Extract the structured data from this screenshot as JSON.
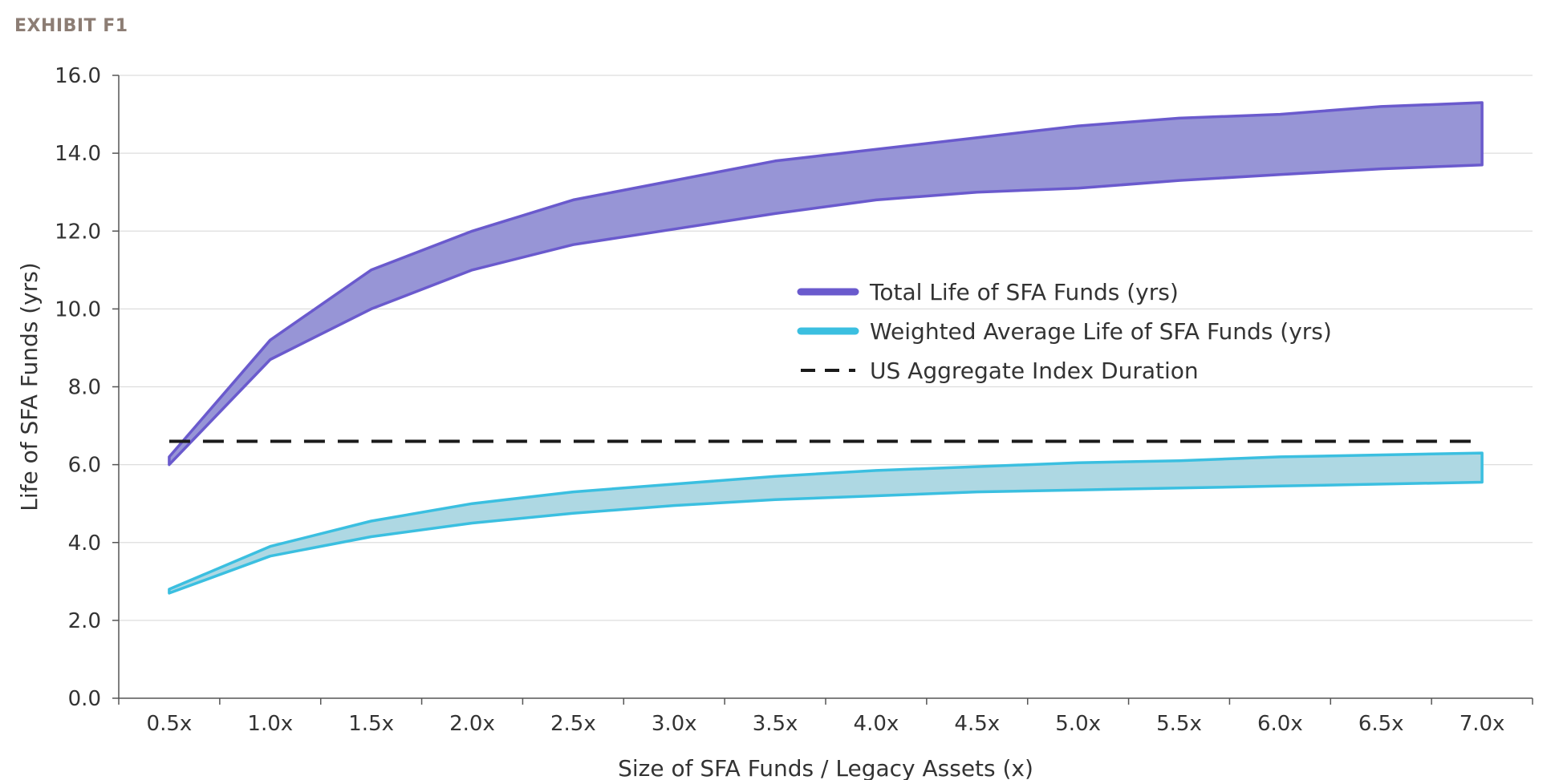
{
  "header": {
    "exhibit_label": "EXHIBIT F1"
  },
  "chart_data": {
    "type": "area",
    "title": "",
    "xlabel": "Size of SFA Funds / Legacy Assets (x)",
    "ylabel": "Life of SFA Funds (yrs)",
    "categories": [
      "0.5x",
      "1.0x",
      "1.5x",
      "2.0x",
      "2.5x",
      "3.0x",
      "3.5x",
      "4.0x",
      "4.5x",
      "5.0x",
      "5.5x",
      "6.0x",
      "6.5x",
      "7.0x"
    ],
    "ylim": [
      0,
      16
    ],
    "yticks": [
      "0.0",
      "2.0",
      "4.0",
      "6.0",
      "8.0",
      "10.0",
      "12.0",
      "14.0",
      "16.0"
    ],
    "grid": true,
    "legend_position": "center-right",
    "series": [
      {
        "name": "Total Life of SFA Funds (yrs)",
        "kind": "band",
        "color": "#6a5acd",
        "fill": "#9795d6",
        "upper": [
          6.2,
          9.2,
          11.0,
          12.0,
          12.8,
          13.3,
          13.8,
          14.1,
          14.4,
          14.7,
          14.9,
          15.0,
          15.2,
          15.3
        ],
        "lower": [
          6.0,
          8.7,
          10.0,
          11.0,
          11.65,
          12.05,
          12.45,
          12.8,
          13.0,
          13.1,
          13.3,
          13.45,
          13.6,
          13.7
        ]
      },
      {
        "name": "Weighted Average Life of SFA Funds (yrs)",
        "kind": "band",
        "color": "#3bbfe0",
        "fill": "#aed8e3",
        "upper": [
          2.8,
          3.9,
          4.55,
          5.0,
          5.3,
          5.5,
          5.7,
          5.85,
          5.95,
          6.05,
          6.1,
          6.2,
          6.25,
          6.3
        ],
        "lower": [
          2.7,
          3.65,
          4.15,
          4.5,
          4.75,
          4.95,
          5.1,
          5.2,
          5.3,
          5.35,
          5.4,
          5.45,
          5.5,
          5.55
        ]
      },
      {
        "name": "US Aggregate Index Duration",
        "kind": "dashed-line",
        "color": "#1a1a1a",
        "value": 6.6
      }
    ]
  },
  "colors": {
    "grid": "#dddddd",
    "axis": "#555555",
    "exhibit": "#8c7d74"
  }
}
